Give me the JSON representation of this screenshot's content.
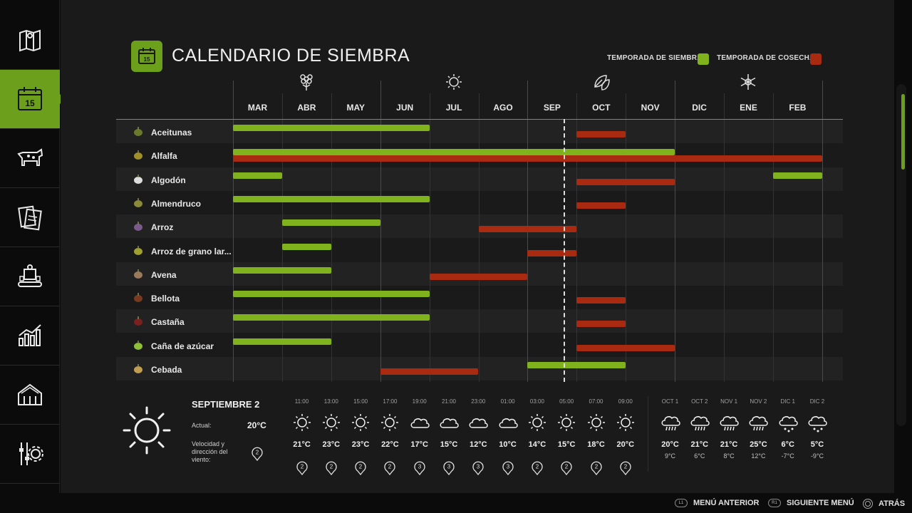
{
  "title": "CALENDARIO DE SIEMBRA",
  "legend": {
    "sowing_label": "TEMPORADA DE SIEMBRA",
    "harvest_label": "TEMPORADA DE COSECHA",
    "sowing_color": "#7fb21c",
    "harvest_color": "#a82a10"
  },
  "sidebar": {
    "items": [
      {
        "icon": "map-icon"
      },
      {
        "icon": "calendar-icon",
        "active": true
      },
      {
        "icon": "cow-icon"
      },
      {
        "icon": "documents-icon"
      },
      {
        "icon": "factory-icon"
      },
      {
        "icon": "stats-icon"
      },
      {
        "icon": "barn-icon"
      },
      {
        "icon": "settings-icon"
      }
    ]
  },
  "seasons": [
    "spring-icon",
    "summer-icon",
    "autumn-icon",
    "winter-icon"
  ],
  "months": [
    "MAR",
    "ABR",
    "MAY",
    "JUN",
    "JUL",
    "AGO",
    "SEP",
    "OCT",
    "NOV",
    "DIC",
    "ENE",
    "FEB"
  ],
  "crops": [
    {
      "name": "Aceitunas",
      "icon": "olive-icon",
      "sow": [
        [
          0,
          4
        ]
      ],
      "harvest": [
        [
          7,
          8
        ]
      ]
    },
    {
      "name": "Alfalfa",
      "icon": "alfalfa-icon",
      "sow": [
        [
          0,
          9
        ]
      ],
      "harvest": [
        [
          0,
          12
        ]
      ]
    },
    {
      "name": "Algodón",
      "icon": "cotton-icon",
      "sow": [
        [
          0,
          1
        ],
        [
          11,
          12
        ]
      ],
      "harvest": [
        [
          7,
          9
        ]
      ]
    },
    {
      "name": "Almendruco",
      "icon": "almond-icon",
      "sow": [
        [
          0,
          4
        ]
      ],
      "harvest": [
        [
          7,
          8
        ]
      ]
    },
    {
      "name": "Arroz",
      "icon": "rice-icon",
      "sow": [
        [
          1,
          3
        ]
      ],
      "harvest": [
        [
          5,
          7
        ]
      ]
    },
    {
      "name": "Arroz de grano lar...",
      "icon": "longrice-icon",
      "sow": [
        [
          1,
          2
        ]
      ],
      "harvest": [
        [
          6,
          7
        ]
      ]
    },
    {
      "name": "Avena",
      "icon": "oat-icon",
      "sow": [
        [
          0,
          2
        ]
      ],
      "harvest": [
        [
          4,
          6
        ]
      ]
    },
    {
      "name": "Bellota",
      "icon": "acorn-icon",
      "sow": [
        [
          0,
          4
        ]
      ],
      "harvest": [
        [
          7,
          8
        ]
      ]
    },
    {
      "name": "Castaña",
      "icon": "chestnut-icon",
      "sow": [
        [
          0,
          4
        ]
      ],
      "harvest": [
        [
          7,
          8
        ]
      ]
    },
    {
      "name": "Caña de azúcar",
      "icon": "sugarcane-icon",
      "sow": [
        [
          0,
          2
        ]
      ],
      "harvest": [
        [
          7,
          9
        ]
      ]
    },
    {
      "name": "Cebada",
      "icon": "barley-icon",
      "sow": [
        [
          6,
          8
        ]
      ],
      "harvest": [
        [
          3,
          5
        ]
      ]
    }
  ],
  "weather": {
    "date": "SEPTIEMBRE 2",
    "current_label": "Actual:",
    "current_temp": "20°C",
    "wind_label": "Velocidad y dirección del viento:",
    "wind_value": "2",
    "hours": [
      {
        "time": "11:00",
        "icon": "sun",
        "temp": "21°C",
        "wind": "2"
      },
      {
        "time": "13:00",
        "icon": "sun",
        "temp": "23°C",
        "wind": "2"
      },
      {
        "time": "15:00",
        "icon": "sun",
        "temp": "23°C",
        "wind": "2"
      },
      {
        "time": "17:00",
        "icon": "sun",
        "temp": "22°C",
        "wind": "2"
      },
      {
        "time": "19:00",
        "icon": "cloud",
        "temp": "17°C",
        "wind": "3"
      },
      {
        "time": "21:00",
        "icon": "cloud",
        "temp": "15°C",
        "wind": "3"
      },
      {
        "time": "23:00",
        "icon": "cloud",
        "temp": "12°C",
        "wind": "3"
      },
      {
        "time": "01:00",
        "icon": "cloud",
        "temp": "10°C",
        "wind": "3"
      },
      {
        "time": "03:00",
        "icon": "sun",
        "temp": "14°C",
        "wind": "2"
      },
      {
        "time": "05:00",
        "icon": "sun",
        "temp": "15°C",
        "wind": "2"
      },
      {
        "time": "07:00",
        "icon": "sun",
        "temp": "18°C",
        "wind": "2"
      },
      {
        "time": "09:00",
        "icon": "sun",
        "temp": "20°C",
        "wind": "2"
      }
    ],
    "days": [
      {
        "day": "OCT 1",
        "icon": "rain",
        "max": "20°C",
        "min": "9°C"
      },
      {
        "day": "OCT 2",
        "icon": "rain",
        "max": "21°C",
        "min": "6°C"
      },
      {
        "day": "NOV 1",
        "icon": "rain",
        "max": "21°C",
        "min": "8°C"
      },
      {
        "day": "NOV 2",
        "icon": "rain",
        "max": "25°C",
        "min": "12°C"
      },
      {
        "day": "DIC 1",
        "icon": "snow",
        "max": "6°C",
        "min": "-7°C"
      },
      {
        "day": "DIC 2",
        "icon": "snow",
        "max": "5°C",
        "min": "-9°C"
      }
    ]
  },
  "footer": {
    "prev_key": "L1",
    "prev_label": "MENÚ ANTERIOR",
    "next_key": "R1",
    "next_label": "SIGUIENTE MENÚ",
    "back_label": "ATRÁS"
  }
}
